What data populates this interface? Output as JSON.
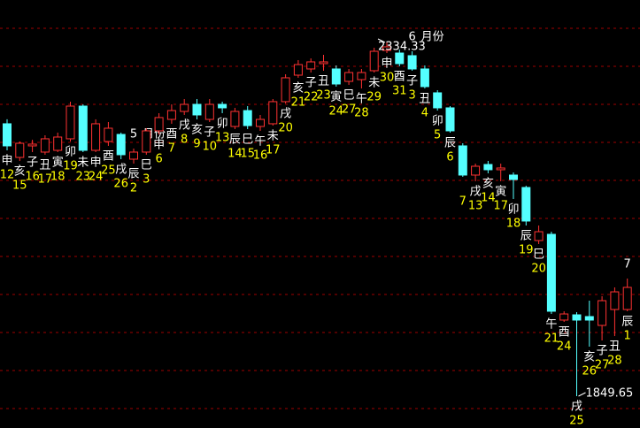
{
  "chart_data": {
    "type": "candlestick",
    "up_color": "#ff3232",
    "down_color": "#54ffff",
    "grid": true,
    "categories": [
      12,
      15,
      16,
      17,
      18,
      19,
      23,
      24,
      25,
      26,
      2,
      3,
      6,
      7,
      8,
      9,
      10,
      13,
      14,
      15,
      16,
      17,
      20,
      21,
      22,
      23,
      24,
      27,
      28,
      29,
      30,
      31,
      3,
      4,
      5,
      6,
      7,
      13,
      14,
      17,
      18,
      19,
      20,
      21,
      24,
      25,
      26,
      27,
      28,
      1
    ],
    "branches": [
      "申",
      "亥",
      "子",
      "丑",
      "寅",
      "卯",
      "未",
      "申",
      "酉",
      "戌",
      "辰",
      "巳",
      "申",
      "酉",
      "戌",
      "亥",
      "子",
      "卯",
      "辰",
      "巳",
      "午",
      "未",
      "戌",
      "亥",
      "子",
      "丑",
      "寅",
      "巳",
      "午",
      "未",
      "申",
      "酉",
      "子",
      "丑",
      "卯",
      "辰",
      null,
      "戌",
      "亥",
      "寅",
      "卯",
      "辰",
      "巳",
      "午",
      "酉",
      "戌",
      "亥",
      "子",
      "丑",
      "辰"
    ],
    "open": [
      2222.9,
      2176.8,
      2192.6,
      2184.1,
      2186.5,
      2202.3,
      2247.1,
      2186.5,
      2198.6,
      2208.3,
      2174.4,
      2184.1,
      2213.2,
      2228.9,
      2239.8,
      2249.5,
      2228.9,
      2249.5,
      2219.2,
      2241.0,
      2219.2,
      2222.9,
      2253.2,
      2289.5,
      2298.0,
      2305.3,
      2298.0,
      2281.0,
      2283.4,
      2295.6,
      2323.4,
      2319.8,
      2316.2,
      2298.0,
      2265.3,
      2244.7,
      2192.6,
      2152.6,
      2167.1,
      2159.9,
      2152.6,
      2135.6,
      2062.9,
      2071.4,
      1953.9,
      1961.1,
      1958.7,
      1946.6,
      1968.4,
      1968.4
    ],
    "high": [
      2229.0,
      2198.6,
      2201.0,
      2207.1,
      2210.8,
      2253.2,
      2249.5,
      2229.0,
      2225.3,
      2210.8,
      2188.9,
      2216.8,
      2237.4,
      2249.5,
      2256.8,
      2256.8,
      2256.8,
      2253.2,
      2244.7,
      2247.1,
      2235.0,
      2256.8,
      2290.7,
      2310.1,
      2312.5,
      2317.4,
      2302.8,
      2298.0,
      2298.0,
      2327.1,
      2334.33,
      2324.6,
      2322.2,
      2302.8,
      2268.9,
      2247.1,
      2196.2,
      2168.3,
      2172.0,
      2168.3,
      2156.2,
      2138.0,
      2083.5,
      2075.0,
      1966.0,
      1964.8,
      1980.5,
      1986.6,
      1998.7,
      2010.8
    ],
    "low": [
      2186.5,
      2172.0,
      2184.1,
      2180.5,
      2184.1,
      2198.6,
      2184.1,
      2184.1,
      2192.6,
      2174.4,
      2168.3,
      2180.5,
      2208.3,
      2222.9,
      2235.0,
      2228.9,
      2225.3,
      2237.4,
      2215.6,
      2215.6,
      2213.2,
      2220.4,
      2250.7,
      2285.9,
      2293.1,
      2295.6,
      2273.8,
      2276.2,
      2271.3,
      2293.1,
      2319.8,
      2301.6,
      2295.6,
      2271.3,
      2241.0,
      2210.8,
      2150.2,
      2144.1,
      2155.0,
      2144.1,
      2119.9,
      2083.5,
      2058.1,
      1962.3,
      1951.4,
      1849.65,
      1917.5,
      1926.0,
      1932.0,
      1966.0
    ],
    "close": [
      2192.6,
      2196.2,
      2195.0,
      2202.3,
      2204.7,
      2247.1,
      2186.5,
      2222.9,
      2216.8,
      2180.5,
      2184.1,
      2213.2,
      2231.4,
      2241.0,
      2249.5,
      2235.0,
      2249.5,
      2244.7,
      2239.8,
      2220.4,
      2228.9,
      2253.2,
      2285.9,
      2304.0,
      2307.7,
      2307.7,
      2277.4,
      2293.1,
      2293.1,
      2322.2,
      2328.3,
      2305.3,
      2298.0,
      2273.8,
      2244.7,
      2213.2,
      2152.6,
      2164.7,
      2159.9,
      2162.3,
      2146.5,
      2089.6,
      2075.0,
      1966.0,
      1962.3,
      1953.9,
      1953.9,
      1980.5,
      1992.6,
      1998.7
    ],
    "month_starts": [
      {
        "month": "5",
        "suffix": "月份"
      },
      {
        "month": "6",
        "suffix": "月份"
      },
      {
        "month": "7"
      }
    ]
  }
}
